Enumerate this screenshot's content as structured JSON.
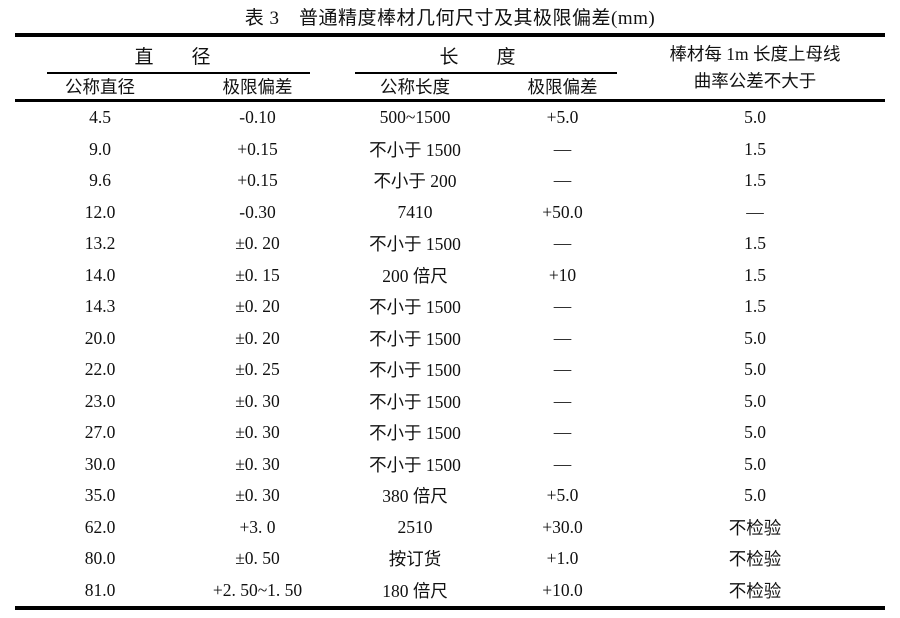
{
  "title": "表 3　普通精度棒材几何尺寸及其极限偏差(mm)",
  "table": {
    "groups": {
      "diameter": "直　　径",
      "length": "长　　度"
    },
    "curvature_header": {
      "line1": "棒材每 1m 长度上母线",
      "line2": "曲率公差不大于"
    },
    "subheaders": {
      "nominal_diameter": "公称直径",
      "diameter_deviation": "极限偏差",
      "nominal_length": "公称长度",
      "length_deviation": "极限偏差"
    },
    "rows": [
      [
        "4.5",
        "-0.10",
        "500~1500",
        "+5.0",
        "5.0"
      ],
      [
        "9.0",
        "+0.15",
        "不小于 1500",
        "—",
        "1.5"
      ],
      [
        "9.6",
        "+0.15",
        "不小于 200",
        "—",
        "1.5"
      ],
      [
        "12.0",
        "-0.30",
        "7410",
        "+50.0",
        "—"
      ],
      [
        "13.2",
        "±0. 20",
        "不小于 1500",
        "—",
        "1.5"
      ],
      [
        "14.0",
        "±0. 15",
        "200 倍尺",
        "+10",
        "1.5"
      ],
      [
        "14.3",
        "±0. 20",
        "不小于 1500",
        "—",
        "1.5"
      ],
      [
        "20.0",
        "±0. 20",
        "不小于 1500",
        "—",
        "5.0"
      ],
      [
        "22.0",
        "±0. 25",
        "不小于 1500",
        "—",
        "5.0"
      ],
      [
        "23.0",
        "±0. 30",
        "不小于 1500",
        "—",
        "5.0"
      ],
      [
        "27.0",
        "±0. 30",
        "不小于 1500",
        "—",
        "5.0"
      ],
      [
        "30.0",
        "±0. 30",
        "不小于 1500",
        "—",
        "5.0"
      ],
      [
        "35.0",
        "±0. 30",
        "380 倍尺",
        "+5.0",
        "5.0"
      ],
      [
        "62.0",
        "+3. 0",
        "2510",
        "+30.0",
        "不检验"
      ],
      [
        "80.0",
        "±0. 50",
        "按订货",
        "+1.0",
        "不检验"
      ],
      [
        "81.0",
        "+2. 50~1. 50",
        "180 倍尺",
        "+10.0",
        "不检验"
      ]
    ]
  }
}
